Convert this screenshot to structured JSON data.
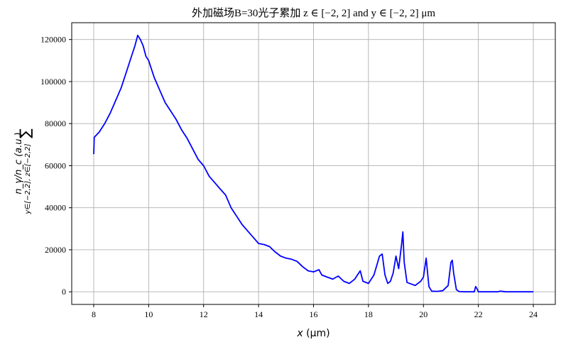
{
  "chart_data": {
    "type": "line",
    "title": "外加磁场B=30光子累加 z ∈ [−2, 2] and y ∈ [−2, 2] μm",
    "xlabel": "x (μm)",
    "ylabel_main": "n_γ/n_c (a.u.)",
    "ylabel_sum_sub": "y∈[−2,2], z∈[−2,2]",
    "xlim": [
      7.2,
      24.8
    ],
    "ylim": [
      -6000,
      128000
    ],
    "grid": true,
    "x_ticks": [
      8,
      10,
      12,
      14,
      16,
      18,
      20,
      22,
      24
    ],
    "x_tick_labels": [
      "8",
      "10",
      "12",
      "14",
      "16",
      "18",
      "20",
      "22",
      "24"
    ],
    "y_ticks": [
      0,
      20000,
      40000,
      60000,
      80000,
      100000,
      120000
    ],
    "y_tick_labels": [
      "0",
      "20000",
      "40000",
      "60000",
      "80000",
      "100000",
      "120000"
    ],
    "series": [
      {
        "color": "#0000ff",
        "x": [
          8.0,
          8.02,
          8.2,
          8.4,
          8.6,
          8.8,
          9.0,
          9.2,
          9.4,
          9.5,
          9.6,
          9.7,
          9.8,
          9.9,
          10.0,
          10.2,
          10.4,
          10.6,
          10.8,
          11.0,
          11.2,
          11.4,
          11.6,
          11.8,
          12.0,
          12.2,
          12.4,
          12.6,
          12.8,
          13.0,
          13.2,
          13.4,
          13.6,
          13.8,
          14.0,
          14.2,
          14.4,
          14.6,
          14.8,
          15.0,
          15.2,
          15.4,
          15.6,
          15.8,
          16.0,
          16.2,
          16.3,
          16.5,
          16.7,
          16.9,
          17.1,
          17.3,
          17.5,
          17.7,
          17.8,
          18.0,
          18.2,
          18.4,
          18.5,
          18.6,
          18.7,
          18.8,
          18.9,
          19.0,
          19.1,
          19.2,
          19.25,
          19.3,
          19.4,
          19.5,
          19.7,
          19.9,
          20.0,
          20.1,
          20.2,
          20.3,
          20.5,
          20.7,
          20.9,
          21.0,
          21.05,
          21.1,
          21.2,
          21.3,
          21.5,
          21.7,
          21.85,
          21.9,
          21.95,
          22.0,
          22.5,
          22.7,
          22.8,
          23.0,
          24.0
        ],
        "y": [
          65500,
          73500,
          76000,
          80000,
          85000,
          91000,
          97000,
          105000,
          113000,
          117000,
          122000,
          120000,
          117000,
          112000,
          110000,
          102000,
          96000,
          90000,
          86000,
          82000,
          77000,
          73000,
          68000,
          63000,
          60000,
          55000,
          52000,
          49000,
          46000,
          40000,
          36000,
          32000,
          29000,
          26000,
          23000,
          22500,
          21500,
          19000,
          17000,
          16000,
          15500,
          14500,
          12000,
          10000,
          9500,
          10500,
          8000,
          7000,
          6000,
          7500,
          5000,
          4000,
          6000,
          10000,
          5000,
          4000,
          8000,
          17000,
          18000,
          8000,
          4000,
          5000,
          9000,
          17000,
          11000,
          22000,
          28500,
          14000,
          4500,
          4000,
          3000,
          5000,
          7000,
          16000,
          2500,
          300,
          200,
          500,
          3000,
          14000,
          15000,
          9000,
          1000,
          100,
          0,
          0,
          0,
          2500,
          1500,
          0,
          0,
          0,
          300,
          0,
          0
        ]
      }
    ]
  }
}
